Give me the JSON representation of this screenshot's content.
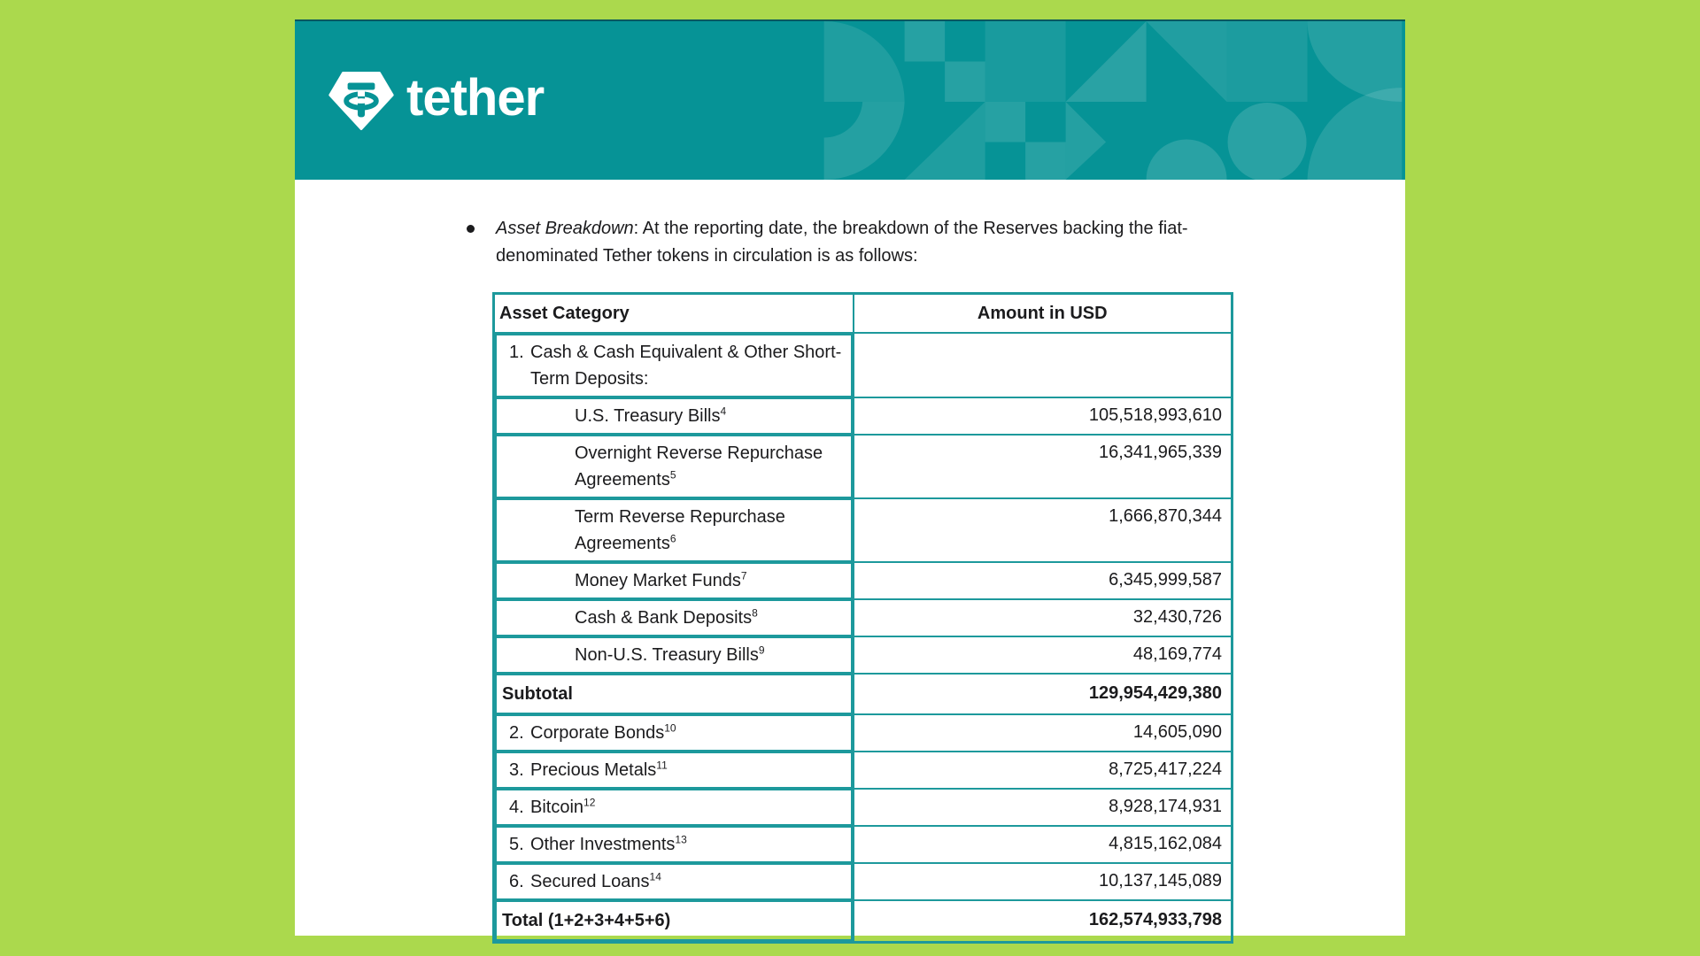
{
  "colors": {
    "background_green": "#abd94d",
    "tether_teal": "#069396",
    "table_border": "#1d999c",
    "text": "#1b1b1d"
  },
  "brand": {
    "wordmark": "tether"
  },
  "intro": {
    "lead_italic": "Asset Breakdown",
    "rest": ": At the reporting date, the breakdown of the Reserves backing the fiat-denominated Tether tokens in circulation is as follows:"
  },
  "table": {
    "columns": [
      "Asset Category",
      "Amount in USD"
    ],
    "rows": [
      {
        "type": "group",
        "number": "1.",
        "label": "Cash & Cash Equivalent & Other Short-Term Deposits:",
        "sup": "",
        "amount": ""
      },
      {
        "type": "sub",
        "number": "",
        "label": "U.S. Treasury Bills",
        "sup": "4",
        "amount": "105,518,993,610"
      },
      {
        "type": "sub",
        "number": "",
        "label": "Overnight Reverse Repurchase Agreements",
        "sup": "5",
        "amount": "16,341,965,339"
      },
      {
        "type": "sub",
        "number": "",
        "label": "Term Reverse Repurchase Agreements",
        "sup": "6",
        "amount": "1,666,870,344"
      },
      {
        "type": "sub",
        "number": "",
        "label": "Money Market Funds",
        "sup": "7",
        "amount": "6,345,999,587"
      },
      {
        "type": "sub",
        "number": "",
        "label": "Cash & Bank Deposits",
        "sup": "8",
        "amount": "32,430,726"
      },
      {
        "type": "sub",
        "number": "",
        "label": "Non-U.S. Treasury Bills",
        "sup": "9",
        "amount": "48,169,774"
      },
      {
        "type": "subtotal",
        "number": "",
        "label": "Subtotal",
        "sup": "",
        "amount": "129,954,429,380"
      },
      {
        "type": "item",
        "number": "2.",
        "label": "Corporate Bonds",
        "sup": "10",
        "amount": "14,605,090"
      },
      {
        "type": "item",
        "number": "3.",
        "label": "Precious Metals",
        "sup": "11",
        "amount": "8,725,417,224"
      },
      {
        "type": "item",
        "number": "4.",
        "label": "Bitcoin",
        "sup": "12",
        "amount": "8,928,174,931"
      },
      {
        "type": "item",
        "number": "5.",
        "label": "Other Investments",
        "sup": "13",
        "amount": "4,815,162,084"
      },
      {
        "type": "item",
        "number": "6.",
        "label": "Secured Loans",
        "sup": "14",
        "amount": "10,137,145,089"
      },
      {
        "type": "total",
        "number": "",
        "label": "Total (1+2+3+4+5+6)",
        "sup": "",
        "amount": "162,574,933,798"
      }
    ]
  }
}
